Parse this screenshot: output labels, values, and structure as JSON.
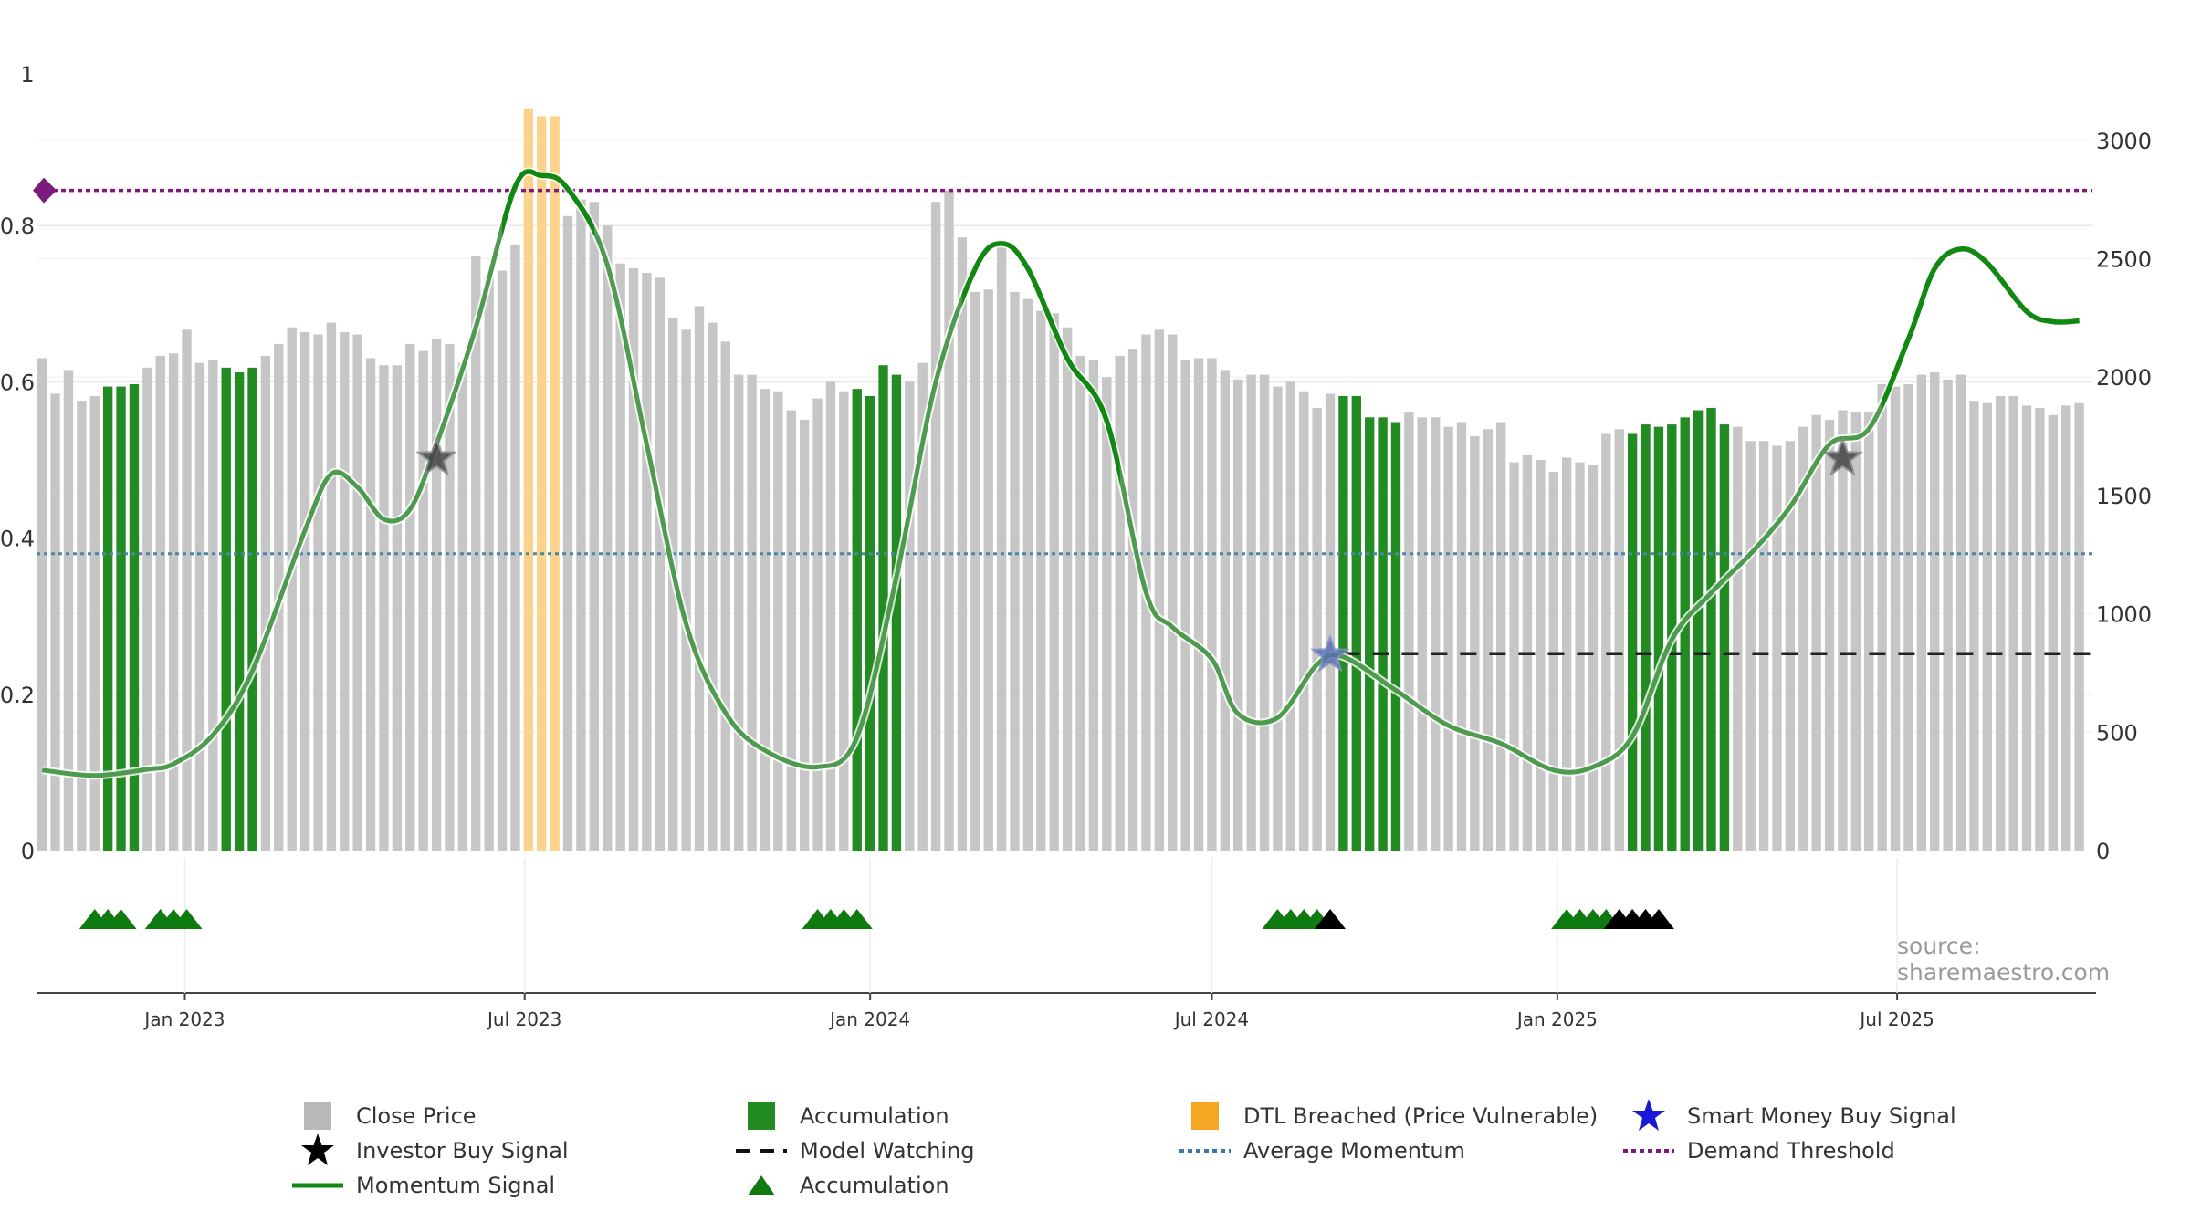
{
  "chart_data": {
    "type": "bar",
    "source_note": "source: sharemaestro.com",
    "left_axis": {
      "range": [
        0,
        1
      ],
      "ticks": [
        0,
        0.2,
        0.4,
        0.6,
        0.8
      ],
      "tick_labels": [
        "0",
        "0.2",
        "0.4",
        "0.6",
        "0.8"
      ],
      "top_label": "1"
    },
    "right_axis": {
      "range": [
        0,
        3300
      ],
      "ticks": [
        0,
        500,
        1000,
        1500,
        2000,
        2500,
        3000
      ],
      "tick_labels": [
        "0",
        "500",
        "1000",
        "1500",
        "2000",
        "2500",
        "3000"
      ]
    },
    "x_axis": {
      "range": [
        "2022-10-14",
        "2025-10-13"
      ],
      "ticks": [
        "2023-01-01",
        "2023-07-01",
        "2024-01-01",
        "2024-07-01",
        "2025-01-01",
        "2025-07-01"
      ],
      "tick_labels": [
        "Jan 2023",
        "Jul 2023",
        "Jan 2024",
        "Jul 2024",
        "Jan 2025",
        "Jul 2025"
      ]
    },
    "grid": true,
    "first_bar_date": "2022-10-17",
    "bar_interval_days": 7,
    "close_price": [
      2080,
      1930,
      2030,
      1900,
      1920,
      1960,
      1960,
      1970,
      2040,
      2090,
      2100,
      2200,
      2060,
      2070,
      2040,
      2020,
      2040,
      2090,
      2140,
      2210,
      2190,
      2180,
      2230,
      2190,
      2180,
      2080,
      2050,
      2050,
      2140,
      2110,
      2160,
      2140,
      2060,
      2510,
      2420,
      2450,
      2560,
      2880,
      2950,
      2900,
      2680,
      2750,
      2740,
      2640,
      2480,
      2460,
      2440,
      2420,
      2250,
      2200,
      2300,
      2230,
      2150,
      2010,
      2010,
      1950,
      1940,
      1860,
      1820,
      1910,
      1980,
      1940,
      1950,
      1920,
      2050,
      2010,
      1980,
      2060,
      2740,
      2790,
      2590,
      2360,
      2370,
      2580,
      2360,
      2330,
      2280,
      2270,
      2210,
      2090,
      2070,
      2000,
      2090,
      2120,
      2180,
      2200,
      2180,
      2070,
      2080,
      2080,
      2030,
      1990,
      2010,
      2010,
      1960,
      1980,
      1940,
      1870,
      1930,
      1920,
      1920,
      1830,
      1830,
      1810,
      1850,
      1830,
      1830,
      1790,
      1810,
      1750,
      1780,
      1810,
      1640,
      1670,
      1650,
      1600,
      1660,
      1640,
      1630,
      1760,
      1780,
      1760,
      1800,
      1790,
      1800,
      1830,
      1860,
      1870,
      1800,
      1790,
      1730,
      1730,
      1710,
      1730,
      1790,
      1840,
      1820,
      1860,
      1850,
      1850,
      1970,
      1960,
      1970,
      2010,
      2020,
      1990,
      2010,
      1900,
      1890,
      1920,
      1920,
      1880,
      1870,
      1840,
      1880,
      1890
    ],
    "bar_state": [
      "n",
      "n",
      "n",
      "n",
      "n",
      "a",
      "a",
      "a",
      "n",
      "n",
      "n",
      "n",
      "n",
      "n",
      "a",
      "a",
      "a",
      "n",
      "n",
      "n",
      "n",
      "n",
      "n",
      "n",
      "n",
      "n",
      "n",
      "n",
      "n",
      "n",
      "n",
      "n",
      "n",
      "n",
      "n",
      "n",
      "n",
      "d",
      "d",
      "d",
      "n",
      "n",
      "n",
      "n",
      "n",
      "n",
      "n",
      "n",
      "n",
      "n",
      "n",
      "n",
      "n",
      "n",
      "n",
      "n",
      "n",
      "n",
      "n",
      "n",
      "n",
      "n",
      "a",
      "a",
      "a",
      "a",
      "n",
      "n",
      "n",
      "n",
      "n",
      "n",
      "n",
      "n",
      "n",
      "n",
      "n",
      "n",
      "n",
      "n",
      "n",
      "n",
      "n",
      "n",
      "n",
      "n",
      "n",
      "n",
      "n",
      "n",
      "n",
      "n",
      "n",
      "n",
      "n",
      "n",
      "n",
      "n",
      "n",
      "a",
      "a",
      "a",
      "a",
      "a",
      "n",
      "n",
      "n",
      "n",
      "n",
      "n",
      "n",
      "n",
      "n",
      "n",
      "n",
      "n",
      "n",
      "n",
      "n",
      "n",
      "n",
      "a",
      "a",
      "a",
      "a",
      "a",
      "a",
      "a",
      "a",
      "n",
      "n",
      "n",
      "n",
      "n",
      "n",
      "n",
      "n",
      "n",
      "n",
      "n",
      "n",
      "n",
      "n",
      "n",
      "n",
      "n",
      "n",
      "n",
      "n",
      "n",
      "n",
      "n",
      "n",
      "n",
      "n",
      "n",
      "n",
      "n"
    ],
    "dtl_heights": [
      0.95,
      0.94
    ],
    "momentum_signal": [
      {
        "x": "2022-10-17",
        "y": 0.103
      },
      {
        "x": "2022-11-14",
        "y": 0.096
      },
      {
        "x": "2022-12-12",
        "y": 0.104
      },
      {
        "x": "2022-12-26",
        "y": 0.111
      },
      {
        "x": "2023-01-16",
        "y": 0.148
      },
      {
        "x": "2023-02-06",
        "y": 0.23
      },
      {
        "x": "2023-03-06",
        "y": 0.41
      },
      {
        "x": "2023-03-20",
        "y": 0.482
      },
      {
        "x": "2023-04-03",
        "y": 0.465
      },
      {
        "x": "2023-04-17",
        "y": 0.424
      },
      {
        "x": "2023-05-01",
        "y": 0.437
      },
      {
        "x": "2023-05-15",
        "y": 0.52
      },
      {
        "x": "2023-06-05",
        "y": 0.67
      },
      {
        "x": "2023-06-26",
        "y": 0.85
      },
      {
        "x": "2023-07-10",
        "y": 0.864
      },
      {
        "x": "2023-07-24",
        "y": 0.847
      },
      {
        "x": "2023-08-14",
        "y": 0.75
      },
      {
        "x": "2023-09-04",
        "y": 0.52
      },
      {
        "x": "2023-09-25",
        "y": 0.29
      },
      {
        "x": "2023-10-16",
        "y": 0.176
      },
      {
        "x": "2023-11-06",
        "y": 0.128
      },
      {
        "x": "2023-12-04",
        "y": 0.107
      },
      {
        "x": "2023-12-25",
        "y": 0.145
      },
      {
        "x": "2024-01-15",
        "y": 0.35
      },
      {
        "x": "2024-02-05",
        "y": 0.6
      },
      {
        "x": "2024-02-26",
        "y": 0.745
      },
      {
        "x": "2024-03-11",
        "y": 0.777
      },
      {
        "x": "2024-03-25",
        "y": 0.745
      },
      {
        "x": "2024-04-15",
        "y": 0.63
      },
      {
        "x": "2024-05-06",
        "y": 0.55
      },
      {
        "x": "2024-05-27",
        "y": 0.33
      },
      {
        "x": "2024-06-10",
        "y": 0.286
      },
      {
        "x": "2024-07-01",
        "y": 0.245
      },
      {
        "x": "2024-07-15",
        "y": 0.175
      },
      {
        "x": "2024-08-05",
        "y": 0.17
      },
      {
        "x": "2024-08-26",
        "y": 0.238
      },
      {
        "x": "2024-09-09",
        "y": 0.248
      },
      {
        "x": "2024-10-07",
        "y": 0.205
      },
      {
        "x": "2024-11-04",
        "y": 0.16
      },
      {
        "x": "2024-12-02",
        "y": 0.137
      },
      {
        "x": "2024-12-30",
        "y": 0.103
      },
      {
        "x": "2025-01-20",
        "y": 0.107
      },
      {
        "x": "2025-02-10",
        "y": 0.146
      },
      {
        "x": "2025-03-03",
        "y": 0.27
      },
      {
        "x": "2025-03-24",
        "y": 0.33
      },
      {
        "x": "2025-04-14",
        "y": 0.38
      },
      {
        "x": "2025-05-05",
        "y": 0.44
      },
      {
        "x": "2025-05-26",
        "y": 0.52
      },
      {
        "x": "2025-06-16",
        "y": 0.54
      },
      {
        "x": "2025-07-07",
        "y": 0.655
      },
      {
        "x": "2025-07-21",
        "y": 0.745
      },
      {
        "x": "2025-08-04",
        "y": 0.77
      },
      {
        "x": "2025-08-18",
        "y": 0.752
      },
      {
        "x": "2025-09-08",
        "y": 0.69
      },
      {
        "x": "2025-09-22",
        "y": 0.677
      },
      {
        "x": "2025-10-06",
        "y": 0.678
      }
    ],
    "strong_segments": [
      [
        "2023-06-19",
        "2023-08-07"
      ],
      [
        "2024-02-19",
        "2024-05-13"
      ],
      [
        "2025-06-23",
        "2025-10-13"
      ]
    ],
    "average_momentum": 0.38,
    "demand_threshold": 0.845,
    "model_watching": {
      "from": "2024-09-09",
      "to": "2025-10-13",
      "y": 0.252
    },
    "investor_buy_signals": [
      {
        "x": "2023-05-15",
        "y": 0.502
      },
      {
        "x": "2025-06-02",
        "y": 0.502
      }
    ],
    "smart_money_buy_signals": [
      {
        "x": "2024-09-02",
        "y": 0.25
      }
    ],
    "accumulation_markers": [
      {
        "x": "2022-11-14",
        "c": "g"
      },
      {
        "x": "2022-11-21",
        "c": "g"
      },
      {
        "x": "2022-11-28",
        "c": "g"
      },
      {
        "x": "2022-12-19",
        "c": "g"
      },
      {
        "x": "2022-12-26",
        "c": "g"
      },
      {
        "x": "2023-01-02",
        "c": "g"
      },
      {
        "x": "2023-12-04",
        "c": "g"
      },
      {
        "x": "2023-12-11",
        "c": "g"
      },
      {
        "x": "2023-12-18",
        "c": "g"
      },
      {
        "x": "2023-12-25",
        "c": "g"
      },
      {
        "x": "2024-08-05",
        "c": "g"
      },
      {
        "x": "2024-08-12",
        "c": "g"
      },
      {
        "x": "2024-08-19",
        "c": "g"
      },
      {
        "x": "2024-08-26",
        "c": "g"
      },
      {
        "x": "2024-09-02",
        "c": "k"
      },
      {
        "x": "2025-01-06",
        "c": "g"
      },
      {
        "x": "2025-01-13",
        "c": "g"
      },
      {
        "x": "2025-01-20",
        "c": "g"
      },
      {
        "x": "2025-01-27",
        "c": "g"
      },
      {
        "x": "2025-02-03",
        "c": "k"
      },
      {
        "x": "2025-02-10",
        "c": "k"
      },
      {
        "x": "2025-02-17",
        "c": "k"
      },
      {
        "x": "2025-02-24",
        "c": "k"
      }
    ],
    "colors": {
      "close_price": "#c6c6c6",
      "accumulation": "#228b22",
      "dtl": "#fbd38d",
      "momentum_dim": "#4e9a4e",
      "momentum_strong": "#118811",
      "average": "#4a86a8",
      "threshold": "#7d1a7d",
      "watching": "#222222",
      "smart_money": "#1a1ad6",
      "investor": "#444444",
      "legend_orange": "#f5a623",
      "legend_grey": "#b8b8b8"
    },
    "legend": [
      {
        "symbol": "square-grey",
        "label": "Close Price"
      },
      {
        "symbol": "star-black",
        "label": "Investor Buy Signal"
      },
      {
        "symbol": "line-green",
        "label": "Momentum Signal"
      },
      {
        "symbol": "square-green",
        "label": "Accumulation"
      },
      {
        "symbol": "dash-black",
        "label": "Model Watching"
      },
      {
        "symbol": "triangle-green",
        "label": "Accumulation"
      },
      {
        "symbol": "square-orange",
        "label": "DTL Breached (Price Vulnerable)"
      },
      {
        "symbol": "dots-blue",
        "label": "Average Momentum"
      },
      {
        "symbol": "star-blue",
        "label": "Smart Money Buy Signal"
      },
      {
        "symbol": "dots-purple",
        "label": "Demand Threshold"
      }
    ]
  }
}
